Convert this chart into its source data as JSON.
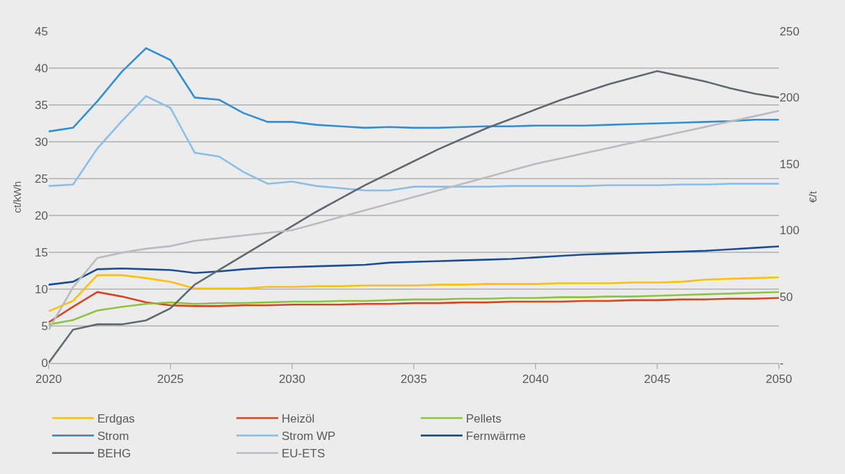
{
  "chart_data": {
    "type": "line",
    "xlabel": null,
    "ylabel": "ct/kWh",
    "y2label": "€/t",
    "x": [
      2020,
      2021,
      2022,
      2023,
      2024,
      2025,
      2026,
      2027,
      2028,
      2029,
      2030,
      2031,
      2032,
      2033,
      2034,
      2035,
      2036,
      2037,
      2038,
      2039,
      2040,
      2041,
      2042,
      2043,
      2044,
      2045,
      2046,
      2047,
      2048,
      2049,
      2050
    ],
    "xlim": [
      2020,
      2050
    ],
    "xticks": [
      2020,
      2025,
      2030,
      2035,
      2040,
      2045,
      2050
    ],
    "ylim": [
      0,
      45
    ],
    "yticks": [
      0,
      5,
      10,
      15,
      20,
      25,
      30,
      35,
      40,
      45
    ],
    "y2lim": [
      0,
      250
    ],
    "y2ticks": [
      {
        "value": 0,
        "label": "-"
      },
      50,
      100,
      150,
      200,
      250
    ],
    "grid": "y",
    "legend": "bottom",
    "marker": "none",
    "line_style": "solid",
    "series": [
      {
        "name": "Erdgas",
        "color": "#ffc000",
        "values": [
          7.0,
          8.4,
          11.9,
          11.9,
          11.5,
          11.0,
          10.1,
          10.1,
          10.1,
          10.3,
          10.3,
          10.4,
          10.4,
          10.5,
          10.5,
          10.5,
          10.6,
          10.6,
          10.7,
          10.7,
          10.7,
          10.8,
          10.8,
          10.8,
          10.9,
          10.9,
          11.0,
          11.3,
          11.4,
          11.5,
          11.6
        ]
      },
      {
        "name": "Heizöl",
        "color": "#d9441c",
        "values": [
          5.5,
          7.6,
          9.6,
          9.0,
          8.2,
          7.8,
          7.7,
          7.7,
          7.8,
          7.8,
          7.9,
          7.9,
          7.9,
          8.0,
          8.0,
          8.1,
          8.1,
          8.2,
          8.2,
          8.3,
          8.3,
          8.3,
          8.4,
          8.4,
          8.5,
          8.5,
          8.6,
          8.6,
          8.7,
          8.7,
          8.8
        ]
      },
      {
        "name": "Pellets",
        "color": "#8cc43c",
        "values": [
          5.2,
          5.8,
          7.1,
          7.6,
          8.0,
          8.2,
          8.0,
          8.1,
          8.1,
          8.2,
          8.3,
          8.3,
          8.4,
          8.4,
          8.5,
          8.6,
          8.6,
          8.7,
          8.7,
          8.8,
          8.8,
          8.9,
          8.9,
          9.0,
          9.0,
          9.1,
          9.2,
          9.3,
          9.4,
          9.5,
          9.6
        ]
      },
      {
        "name": "Strom",
        "color": "#2e8ed6",
        "values": [
          31.4,
          31.9,
          35.5,
          39.5,
          42.7,
          41.1,
          36.0,
          35.7,
          33.9,
          32.7,
          32.7,
          32.3,
          32.1,
          31.9,
          32.0,
          31.9,
          31.9,
          32.0,
          32.1,
          32.1,
          32.2,
          32.2,
          32.2,
          32.3,
          32.4,
          32.5,
          32.6,
          32.7,
          32.8,
          33.0,
          33.0
        ]
      },
      {
        "name": "Strom WP",
        "color": "#86c0ea",
        "values": [
          24.0,
          24.2,
          29.1,
          32.8,
          36.2,
          34.6,
          28.5,
          28.0,
          25.9,
          24.3,
          24.6,
          24.0,
          23.7,
          23.4,
          23.4,
          23.9,
          23.9,
          23.9,
          23.9,
          24.0,
          24.0,
          24.0,
          24.0,
          24.1,
          24.1,
          24.1,
          24.2,
          24.2,
          24.3,
          24.3,
          24.3
        ]
      },
      {
        "name": "Fernwärme",
        "color": "#1a4e94",
        "values": [
          10.6,
          11.0,
          12.7,
          12.8,
          12.7,
          12.6,
          12.2,
          12.4,
          12.7,
          12.9,
          13.0,
          13.1,
          13.2,
          13.3,
          13.6,
          13.7,
          13.8,
          13.9,
          14.0,
          14.1,
          14.3,
          14.5,
          14.7,
          14.8,
          14.9,
          15.0,
          15.1,
          15.2,
          15.4,
          15.6,
          15.8
        ]
      },
      {
        "name": "BEHG",
        "color": "#5f6770",
        "axis": "y2",
        "values": [
          0,
          25,
          29,
          29,
          32,
          41,
          59,
          70,
          81,
          92,
          103,
          114,
          124,
          134,
          143,
          152,
          161,
          169,
          177,
          184,
          191,
          198,
          204,
          210,
          215,
          220,
          216,
          212,
          207,
          203,
          200
        ]
      },
      {
        "name": "EU-ETS",
        "color": "#b8bcc0",
        "axis": "y2",
        "values": [
          25,
          57,
          79,
          83,
          86,
          88,
          92,
          94,
          96,
          98,
          100,
          105,
          110,
          115,
          120,
          125,
          130,
          135,
          140,
          145,
          150,
          154,
          158,
          162,
          166,
          170,
          174,
          178,
          182,
          186,
          190
        ]
      }
    ]
  }
}
